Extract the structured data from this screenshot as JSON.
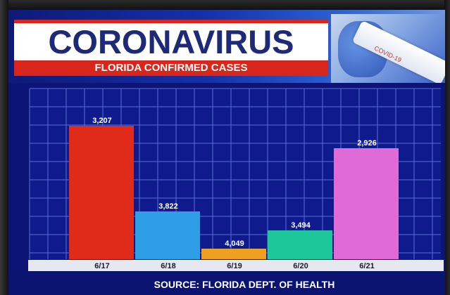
{
  "header": {
    "title": "CORONAVIRUS",
    "subtitle": "FLORIDA CONFIRMED CASES",
    "tube_label": "COVID-19"
  },
  "footer": {
    "source": "SOURCE: FLORIDA DEPT. OF HEALTH"
  },
  "colors": {
    "title_text": "#1e2a78",
    "accent_red": "#d9261c",
    "grid_bg": "#0f1a8c",
    "grid_line": "#5a6fd6"
  },
  "chart_data": {
    "type": "bar",
    "title": "FLORIDA CONFIRMED CASES",
    "categories": [
      "6/17",
      "6/18",
      "6/19",
      "6/20",
      "6/21"
    ],
    "values": [
      3207,
      3822,
      4049,
      3494,
      2926
    ],
    "data_labels": [
      "3,207",
      "3,822",
      "4,049",
      "3,494",
      "2,926"
    ],
    "bar_colors": [
      "#e02a1a",
      "#2e9fe6",
      "#f0a020",
      "#1ec79a",
      "#e06ad6"
    ],
    "display_fraction": [
      0.78,
      0.28,
      0.06,
      0.17,
      0.65
    ],
    "grid": true,
    "source": "SOURCE: FLORIDA DEPT. OF HEALTH"
  }
}
